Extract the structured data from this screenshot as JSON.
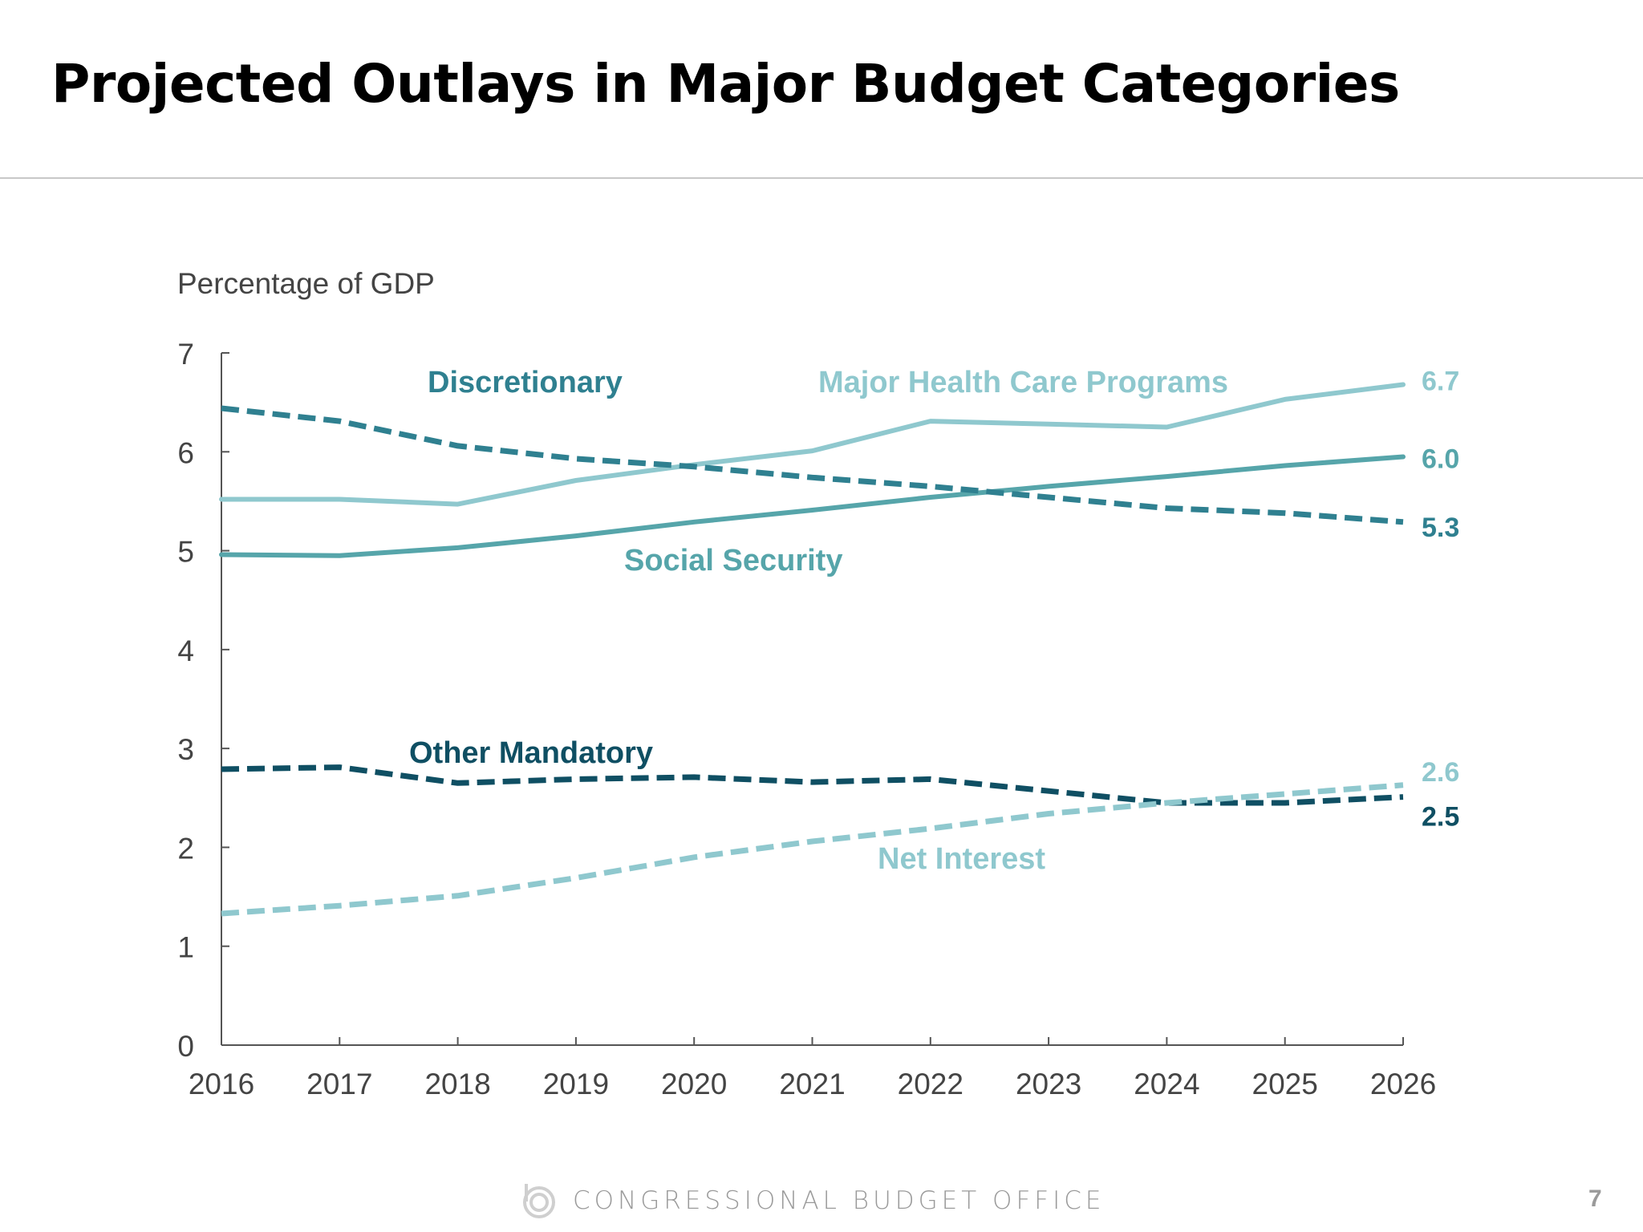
{
  "header": {
    "title": "Projected Outlays in Major Budget Categories"
  },
  "footer": {
    "org": "CONGRESSIONAL BUDGET OFFICE",
    "page_number": "7",
    "logo_icon": "cbo-logo-icon"
  },
  "chart_data": {
    "type": "line",
    "title": "Projected Outlays in Major Budget Categories",
    "ylabel": "Percentage of GDP",
    "xlabel": "",
    "x": [
      2016,
      2017,
      2018,
      2019,
      2020,
      2021,
      2022,
      2023,
      2024,
      2025,
      2026
    ],
    "xticks": [
      "2016",
      "2017",
      "2018",
      "2019",
      "2020",
      "2021",
      "2022",
      "2023",
      "2024",
      "2025",
      "2026"
    ],
    "yticks": [
      "0",
      "1",
      "2",
      "3",
      "4",
      "5",
      "6",
      "7"
    ],
    "xlim": [
      2016,
      2026
    ],
    "ylim": [
      0,
      7
    ],
    "grid": false,
    "legend": "inline labels",
    "series": [
      {
        "name": "Major Health Care Programs",
        "style": "solid",
        "color": "#8fc8ce",
        "end_label": "6.7",
        "values": [
          5.52,
          5.52,
          5.47,
          5.71,
          5.87,
          6.01,
          6.31,
          6.28,
          6.25,
          6.53,
          6.68
        ]
      },
      {
        "name": "Social Security",
        "style": "solid",
        "color": "#56a5aa",
        "end_label": "6.0",
        "values": [
          4.96,
          4.95,
          5.03,
          5.15,
          5.29,
          5.41,
          5.54,
          5.65,
          5.75,
          5.86,
          5.95
        ]
      },
      {
        "name": "Discretionary",
        "style": "dashed",
        "color": "#2f8090",
        "end_label": "5.3",
        "values": [
          6.44,
          6.31,
          6.06,
          5.93,
          5.85,
          5.74,
          5.65,
          5.54,
          5.43,
          5.38,
          5.29
        ]
      },
      {
        "name": "Other Mandatory",
        "style": "dashed",
        "color": "#0f4f63",
        "end_label": "2.5",
        "values": [
          2.79,
          2.81,
          2.65,
          2.69,
          2.71,
          2.66,
          2.69,
          2.57,
          2.45,
          2.45,
          2.51
        ]
      },
      {
        "name": "Net Interest",
        "style": "dashed",
        "color": "#8fc8ce",
        "end_label": "2.6",
        "values": [
          1.33,
          1.41,
          1.51,
          1.69,
          1.9,
          2.06,
          2.19,
          2.34,
          2.45,
          2.54,
          2.63
        ]
      }
    ]
  }
}
